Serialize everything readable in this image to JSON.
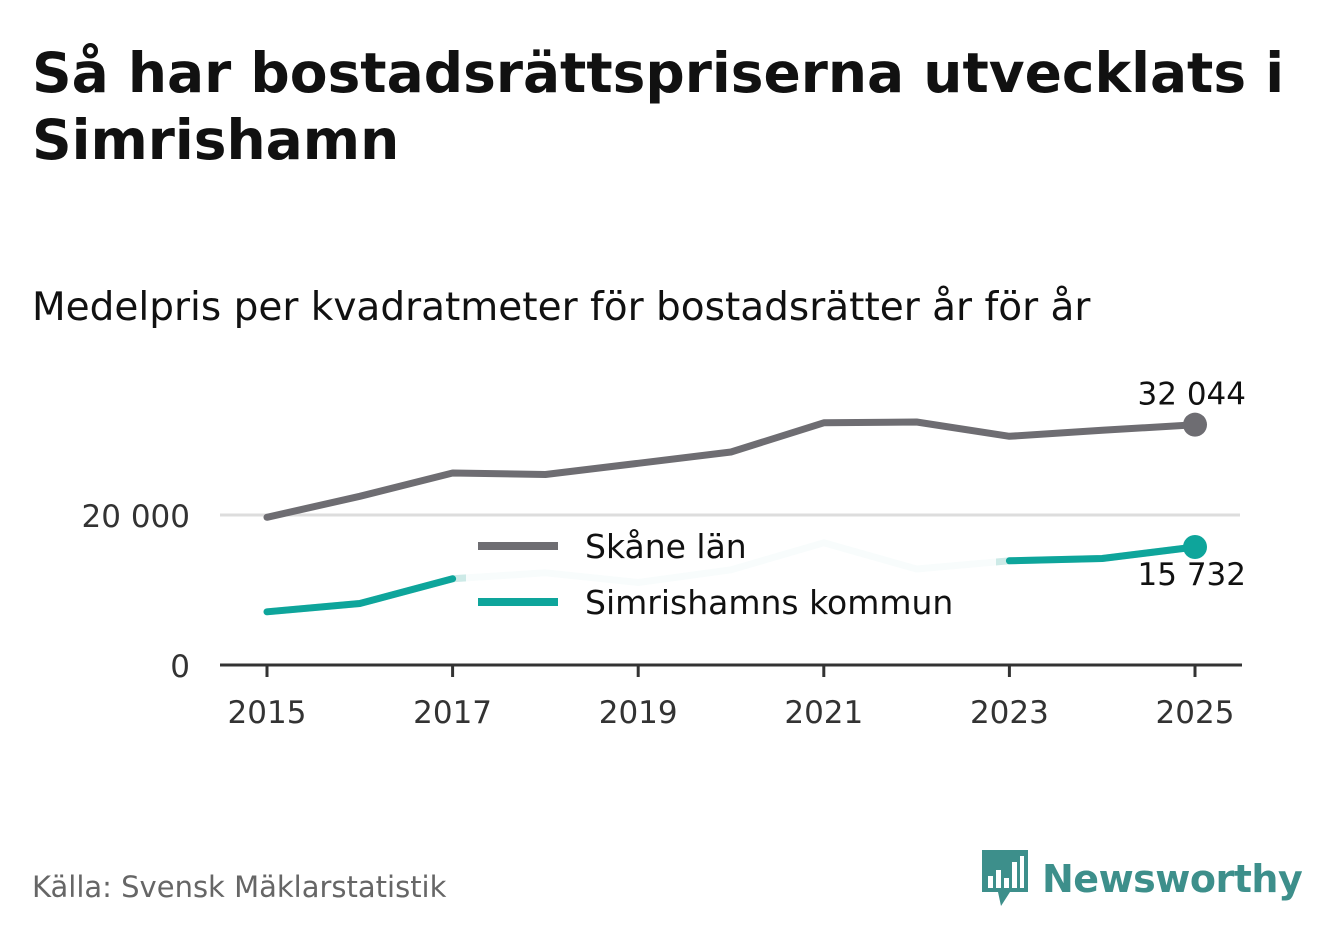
{
  "title": "Så har bostadsrättspriserna utvecklats i Simrishamn",
  "subtitle": "Medelpris per kvadratmeter för bostadsrätter år för år",
  "source": "Källa: Svensk Mäklarstatistik",
  "logo": {
    "text": "Newsworthy",
    "icon": "newsworthy-chart-icon",
    "color": "#3d8f8b"
  },
  "chart_data": {
    "type": "line",
    "x": [
      2015,
      2016,
      2017,
      2018,
      2019,
      2020,
      2021,
      2022,
      2023,
      2024,
      2025
    ],
    "xticks": [
      "2015",
      "2017",
      "2019",
      "2021",
      "2023",
      "2025"
    ],
    "yticks": [
      "0",
      "20 000"
    ],
    "ylim": [
      0,
      34000
    ],
    "grid": true,
    "series": [
      {
        "name": "Skåne län",
        "color": "#6e6d72",
        "values": [
          19700,
          22500,
          25600,
          25400,
          26900,
          28400,
          32300,
          32400,
          30500,
          31300,
          32044
        ],
        "end_label": "32 044"
      },
      {
        "name": "Simrishamns kommun",
        "color": "#0ea59b",
        "faded_color": "#cdeae7",
        "values": [
          7100,
          8200,
          11500,
          12300,
          11000,
          12700,
          16300,
          12800,
          13900,
          14200,
          15732
        ],
        "faded_between": [
          [
            2017,
            2023
          ]
        ],
        "end_label": "15 732"
      }
    ],
    "legend": {
      "position": "center"
    }
  }
}
